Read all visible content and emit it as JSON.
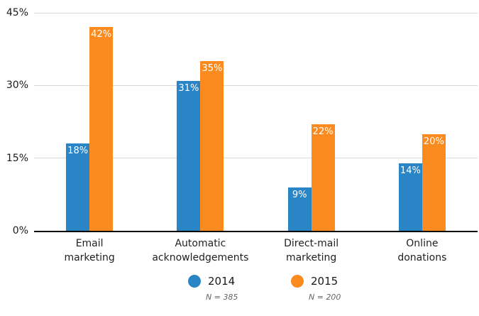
{
  "chart_data": {
    "type": "bar",
    "categories": [
      "Email\nmarketing",
      "Automatic\nacknowledgements",
      "Direct-mail\nmarketing",
      "Online\ndonations"
    ],
    "series": [
      {
        "name": "2014",
        "color": "#2a85c6",
        "values": [
          18,
          31,
          9,
          14
        ],
        "sample_label": "N = 385"
      },
      {
        "name": "2015",
        "color": "#fb8b1e",
        "values": [
          42,
          35,
          22,
          20
        ],
        "sample_label": "N = 200"
      }
    ],
    "value_suffix": "%",
    "ylim": [
      0,
      45
    ],
    "y_tick_values": [
      45,
      30,
      15,
      0
    ],
    "y_tick_labels": [
      "45%",
      "30%",
      "15%",
      "0%"
    ],
    "grid": true,
    "legend_position": "bottom",
    "title": "",
    "xlabel": "",
    "ylabel": ""
  },
  "colors": {
    "series_2014": "#2a85c6",
    "series_2015": "#fb8b1e",
    "gridline": "#d9d9d9",
    "axis_line": "#000000",
    "bar_value_label": "#ffffff",
    "tick_label": "#1a1a1a",
    "sample_label": "#666666"
  }
}
